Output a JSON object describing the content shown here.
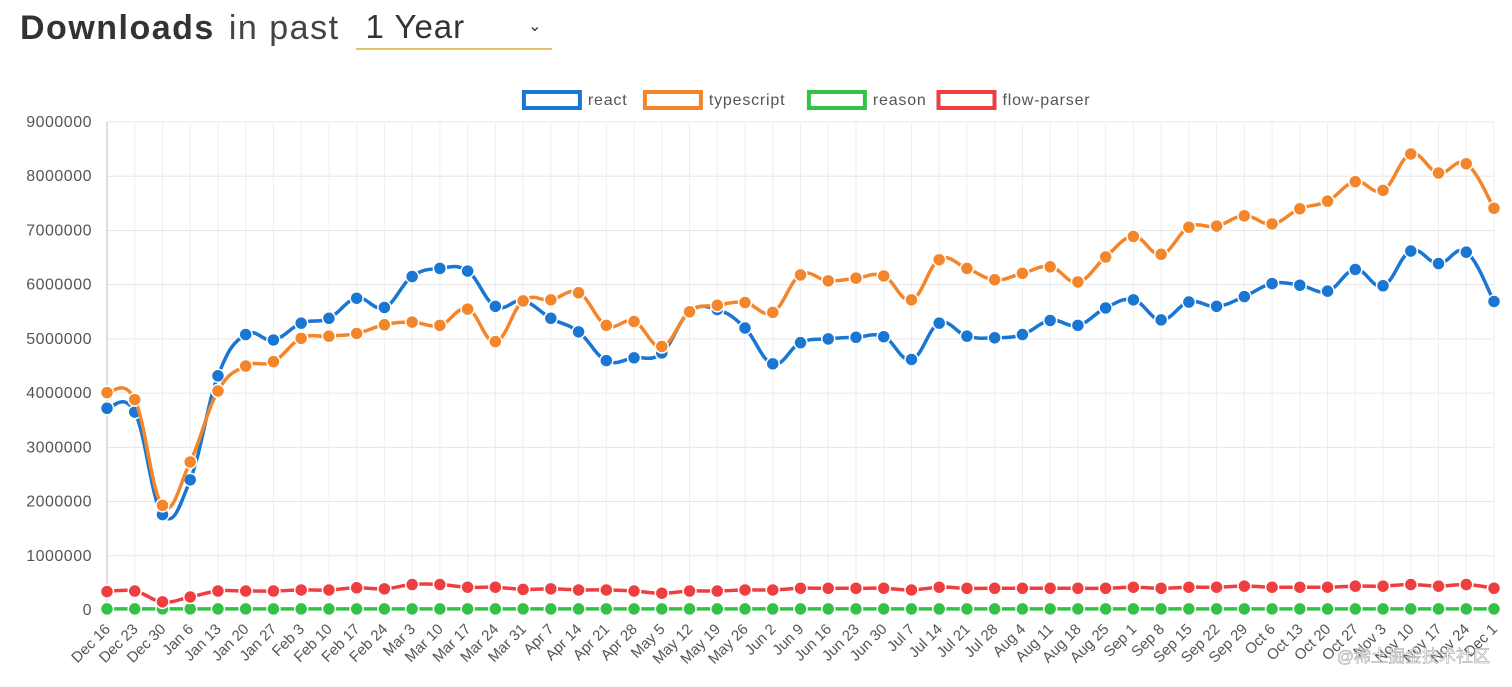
{
  "header": {
    "title_bold": "Downloads",
    "title_light": "in past",
    "period_value": "1 Year",
    "caret_icon": "chevron-down-icon"
  },
  "watermark": "@稀土掘金技术社区",
  "chart_data": {
    "type": "line",
    "title": "",
    "xlabel": "",
    "ylabel": "",
    "ylim": [
      0,
      9000000
    ],
    "yticks": [
      0,
      1000000,
      2000000,
      3000000,
      4000000,
      5000000,
      6000000,
      7000000,
      8000000,
      9000000
    ],
    "grid": true,
    "legend_position": "top-center",
    "categories": [
      "Dec 16",
      "Dec 23",
      "Dec 30",
      "Jan 6",
      "Jan 13",
      "Jan 20",
      "Jan 27",
      "Feb 3",
      "Feb 10",
      "Feb 17",
      "Feb 24",
      "Mar 3",
      "Mar 10",
      "Mar 17",
      "Mar 24",
      "Mar 31",
      "Apr 7",
      "Apr 14",
      "Apr 21",
      "Apr 28",
      "May 5",
      "May 12",
      "May 19",
      "May 26",
      "Jun 2",
      "Jun 9",
      "Jun 16",
      "Jun 23",
      "Jun 30",
      "Jul 7",
      "Jul 14",
      "Jul 21",
      "Jul 28",
      "Aug 4",
      "Aug 11",
      "Aug 18",
      "Aug 25",
      "Sep 1",
      "Sep 8",
      "Sep 15",
      "Sep 22",
      "Sep 29",
      "Oct 6",
      "Oct 13",
      "Oct 20",
      "Oct 27",
      "Nov 3",
      "Nov 10",
      "Nov 17",
      "Nov 24",
      "Dec 1"
    ],
    "series": [
      {
        "name": "react",
        "color": "#1976d2",
        "values": [
          3720000,
          3650000,
          1760000,
          2400000,
          4320000,
          5080000,
          4980000,
          5290000,
          5380000,
          5750000,
          5580000,
          6150000,
          6300000,
          6250000,
          5600000,
          5700000,
          5380000,
          5130000,
          4600000,
          4650000,
          4740000,
          5500000,
          5540000,
          5200000,
          4540000,
          4930000,
          5000000,
          5030000,
          5040000,
          4620000,
          5290000,
          5050000,
          5020000,
          5080000,
          5340000,
          5250000,
          5570000,
          5720000,
          5350000,
          5680000,
          5600000,
          5780000,
          6020000,
          5990000,
          5880000,
          6280000,
          5980000,
          6620000,
          6390000,
          6600000,
          5690000
        ]
      },
      {
        "name": "typescript",
        "color": "#f3862b",
        "values": [
          4010000,
          3880000,
          1930000,
          2730000,
          4040000,
          4500000,
          4580000,
          5010000,
          5050000,
          5100000,
          5260000,
          5310000,
          5250000,
          5550000,
          4950000,
          5700000,
          5720000,
          5850000,
          5250000,
          5320000,
          4860000,
          5500000,
          5620000,
          5670000,
          5490000,
          6180000,
          6070000,
          6120000,
          6160000,
          5720000,
          6460000,
          6300000,
          6090000,
          6210000,
          6330000,
          6050000,
          6510000,
          6890000,
          6560000,
          7060000,
          7080000,
          7270000,
          7120000,
          7400000,
          7540000,
          7900000,
          7740000,
          8410000,
          8060000,
          8230000,
          7410000
        ]
      },
      {
        "name": "reason",
        "color": "#33c146",
        "values": [
          20000,
          20000,
          20000,
          20000,
          20000,
          20000,
          20000,
          20000,
          20000,
          20000,
          20000,
          20000,
          20000,
          20000,
          20000,
          20000,
          20000,
          20000,
          20000,
          20000,
          20000,
          20000,
          20000,
          20000,
          20000,
          20000,
          20000,
          20000,
          20000,
          20000,
          20000,
          20000,
          20000,
          20000,
          20000,
          20000,
          20000,
          20000,
          20000,
          20000,
          20000,
          20000,
          20000,
          20000,
          20000,
          20000,
          20000,
          20000,
          20000,
          20000,
          20000
        ]
      },
      {
        "name": "flow-parser",
        "color": "#ef3e40",
        "values": [
          340000,
          350000,
          150000,
          240000,
          350000,
          350000,
          350000,
          370000,
          370000,
          410000,
          390000,
          470000,
          470000,
          420000,
          420000,
          380000,
          390000,
          370000,
          370000,
          350000,
          310000,
          350000,
          350000,
          370000,
          370000,
          400000,
          400000,
          400000,
          400000,
          370000,
          420000,
          400000,
          400000,
          400000,
          400000,
          400000,
          400000,
          420000,
          400000,
          420000,
          420000,
          440000,
          420000,
          420000,
          420000,
          440000,
          440000,
          470000,
          440000,
          470000,
          400000
        ]
      }
    ]
  }
}
